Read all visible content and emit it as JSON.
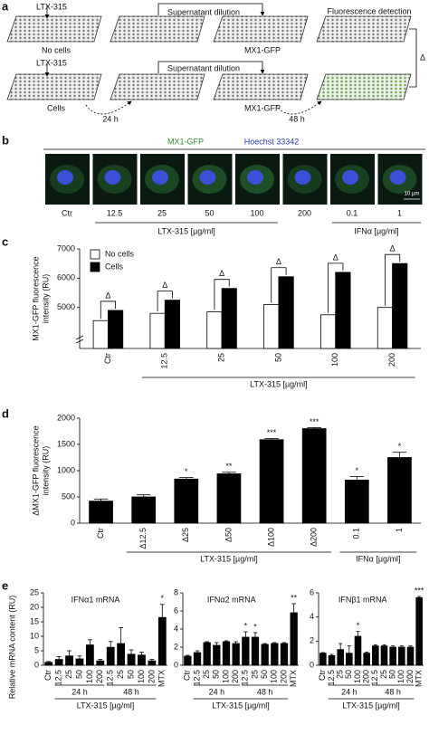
{
  "panel_letters": [
    "a",
    "b",
    "c",
    "d",
    "e"
  ],
  "panel_a": {
    "row1": {
      "top_label": "LTX-315",
      "plate_label": "No cells",
      "step": "Supernatant dilution",
      "reporter": "MX1-GFP",
      "readout": "Fluorescence detection"
    },
    "row2": {
      "top_label": "LTX-315",
      "plate_label": "Cells",
      "step": "Supernatant dilution",
      "reporter": "MX1-GFP",
      "time1": "24 h",
      "time2": "48 h"
    },
    "delta": "Δ"
  },
  "panel_b": {
    "channels": [
      "MX1-GFP",
      "Hoechst 33342"
    ],
    "labels": [
      "Ctr",
      "12.5",
      "25",
      "50",
      "100",
      "200",
      "0.1",
      "1"
    ],
    "scale_bar": "10 µm",
    "groups": [
      "LTX-315 [µg/ml]",
      "IFNα [µg/ml]"
    ]
  },
  "chart_data": [
    {
      "type": "bar",
      "ylabel": [
        "MX1-GFP fluorescence",
        "intensity (RU)"
      ],
      "categories": [
        "Ctr",
        "12.5",
        "25",
        "50",
        "100",
        "200"
      ],
      "series": [
        {
          "name": "No cells",
          "color": "#ffffff",
          "values": [
            4550,
            4800,
            4850,
            5100,
            4750,
            5000
          ]
        },
        {
          "name": "Cells",
          "color": "#000000",
          "values": [
            4900,
            5250,
            5650,
            6050,
            6200,
            6500
          ]
        }
      ],
      "annotations": [
        "Δ",
        "Δ",
        "Δ",
        "Δ",
        "Δ",
        "Δ"
      ],
      "xlabel": "LTX-315 [µg/ml]",
      "ylim": [
        3600,
        7000
      ],
      "yticks": [
        5000,
        6000,
        7000
      ],
      "legend": "upper left",
      "axis_break": true
    },
    {
      "type": "bar",
      "ylabel": [
        "ΔMX1-GFP fluorescence",
        "intensity (RU)"
      ],
      "categories": [
        "Ctr",
        "Δ12.5",
        "Δ25",
        "Δ50",
        "Δ100",
        "Δ200",
        "0.1",
        "1"
      ],
      "values": [
        420,
        500,
        840,
        940,
        1590,
        1800,
        820,
        1250
      ],
      "errors": [
        40,
        40,
        30,
        30,
        20,
        20,
        70,
        100
      ],
      "annotations": [
        null,
        null,
        "*",
        "**",
        "***",
        "***",
        "*",
        "*"
      ],
      "group_labels": [
        "LTX-315 [µg/ml]",
        "IFNα [µg/ml]"
      ],
      "color": "#000000",
      "ylim": [
        0,
        2000
      ],
      "yticks": [
        0,
        500,
        1000,
        1500,
        2000
      ]
    },
    {
      "type": "bar",
      "title": "IFNα1 mRNA",
      "ylabel": "Relative mRNA content (RU)",
      "categories": [
        "Ctr",
        "12.5",
        "25",
        "50",
        "100",
        "200",
        "12.5",
        "25",
        "50",
        "100",
        "200",
        "MTX"
      ],
      "values": [
        1.0,
        2.0,
        3.2,
        2.2,
        7.0,
        1.5,
        6.2,
        7.5,
        3.8,
        3.5,
        1.5,
        16.5
      ],
      "errors": [
        0.3,
        1.0,
        1.8,
        1.0,
        1.8,
        0.5,
        2.0,
        5.5,
        1.5,
        1.0,
        0.5,
        4.5
      ],
      "annotations": [
        null,
        null,
        null,
        null,
        null,
        null,
        null,
        null,
        null,
        null,
        null,
        "*"
      ],
      "group_labels": [
        "24 h",
        "48 h"
      ],
      "xlabel": "LTX-315 [µg/ml]",
      "color": "#000000",
      "ylim": [
        0,
        25
      ],
      "yticks": [
        0,
        5,
        10,
        15,
        20,
        25
      ]
    },
    {
      "type": "bar",
      "title": "IFNα2 mRNA",
      "categories": [
        "Ctr",
        "12.5",
        "25",
        "50",
        "100",
        "200",
        "12.5",
        "25",
        "50",
        "100",
        "200",
        "MTX"
      ],
      "values": [
        1.0,
        1.4,
        2.5,
        2.2,
        2.6,
        2.4,
        3.1,
        3.1,
        2.3,
        2.4,
        2.4,
        5.8
      ],
      "errors": [
        0.1,
        0.2,
        0.1,
        0.3,
        0.1,
        0.2,
        0.6,
        0.5,
        0.1,
        0.1,
        0.1,
        1.0
      ],
      "annotations": [
        null,
        null,
        null,
        null,
        null,
        null,
        "*",
        "*",
        null,
        null,
        null,
        "**"
      ],
      "group_labels": [
        "24 h",
        "48 h"
      ],
      "xlabel": "LTX-315 [µg/ml]",
      "color": "#000000",
      "ylim": [
        0,
        8
      ],
      "yticks": [
        0,
        2,
        4,
        6,
        8
      ]
    },
    {
      "type": "bar",
      "title": "IFNβ1 mRNA",
      "categories": [
        "Ctr",
        "12.5",
        "25",
        "50",
        "100",
        "200",
        "12.5",
        "25",
        "50",
        "100",
        "200",
        "MTX"
      ],
      "values": [
        1.0,
        0.8,
        1.3,
        1.0,
        2.4,
        1.0,
        1.6,
        1.6,
        1.5,
        1.5,
        1.5,
        5.6
      ],
      "errors": [
        0.05,
        0.1,
        0.5,
        0.6,
        0.4,
        0.1,
        0.1,
        0.1,
        0.1,
        0.1,
        0.1,
        0.1
      ],
      "annotations": [
        null,
        null,
        null,
        null,
        "*",
        null,
        null,
        null,
        null,
        null,
        null,
        "***"
      ],
      "group_labels": [
        "24 h",
        "48 h"
      ],
      "xlabel": "LTX-315 [µg/ml]",
      "color": "#000000",
      "ylim": [
        0,
        6
      ],
      "yticks": [
        0,
        2,
        4,
        6
      ]
    }
  ]
}
